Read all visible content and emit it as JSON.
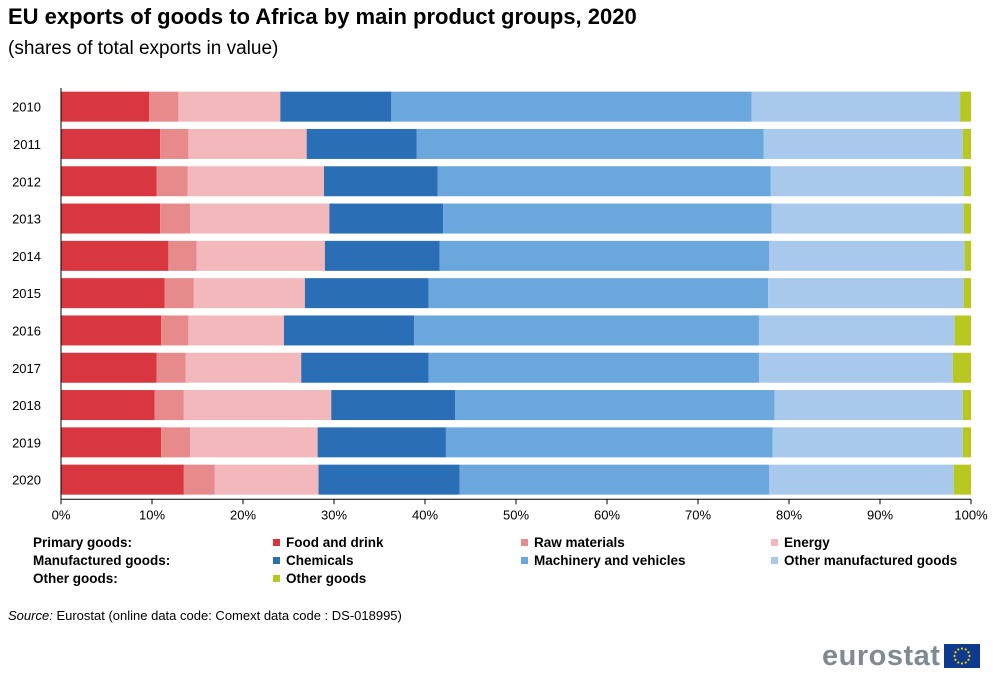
{
  "title": "EU exports of goods to Africa by main product groups, 2020",
  "subtitle": "(shares of total exports in value)",
  "chart_data": {
    "type": "bar",
    "orientation": "horizontal",
    "stacked": true,
    "categories": [
      "2010",
      "2011",
      "2012",
      "2013",
      "2014",
      "2015",
      "2016",
      "2017",
      "2018",
      "2019",
      "2020"
    ],
    "xlim": [
      0,
      100
    ],
    "xticks": [
      0,
      10,
      20,
      30,
      40,
      50,
      60,
      70,
      80,
      90,
      100
    ],
    "xtick_labels": [
      "0%",
      "10%",
      "20%",
      "30%",
      "40%",
      "50%",
      "60%",
      "70%",
      "80%",
      "90%",
      "100%"
    ],
    "grid": false,
    "series": [
      {
        "name": "Food and drink",
        "color": "#d9373f",
        "values": [
          9.7,
          10.9,
          10.5,
          10.9,
          11.8,
          11.4,
          11.0,
          10.5,
          10.3,
          11.0,
          13.5
        ]
      },
      {
        "name": "Raw materials",
        "color": "#e68a8c",
        "values": [
          3.2,
          3.1,
          3.4,
          3.3,
          3.1,
          3.2,
          3.0,
          3.2,
          3.2,
          3.2,
          3.4
        ]
      },
      {
        "name": "Energy",
        "color": "#f2b8bb",
        "values": [
          11.2,
          13.0,
          15.0,
          15.3,
          14.1,
          12.2,
          10.5,
          12.7,
          16.2,
          14.0,
          11.4
        ]
      },
      {
        "name": "Chemicals",
        "color": "#2a6fb5",
        "values": [
          12.2,
          12.1,
          12.5,
          12.5,
          12.6,
          13.6,
          14.3,
          14.0,
          13.6,
          14.1,
          15.5
        ]
      },
      {
        "name": "Machinery and vehicles",
        "color": "#6aa7dd",
        "values": [
          39.6,
          38.1,
          36.6,
          36.1,
          36.2,
          37.3,
          37.9,
          36.3,
          35.1,
          35.9,
          34.0
        ]
      },
      {
        "name": "Other manufactured goods",
        "color": "#a8c9ec",
        "values": [
          22.9,
          21.9,
          21.2,
          21.1,
          21.5,
          21.5,
          21.5,
          21.3,
          20.7,
          20.9,
          20.3
        ]
      },
      {
        "name": "Other goods",
        "color": "#b9c820",
        "values": [
          1.2,
          0.9,
          0.8,
          0.8,
          0.7,
          0.8,
          1.8,
          2.0,
          0.9,
          0.9,
          1.9
        ]
      }
    ],
    "legend_position": "bottom",
    "legend_groups": [
      {
        "label": "Primary goods:",
        "items": [
          "Food and drink",
          "Raw materials",
          "Energy"
        ]
      },
      {
        "label": "Manufactured goods:",
        "items": [
          "Chemicals",
          "Machinery and vehicles",
          "Other manufactured goods"
        ]
      },
      {
        "label": "Other goods:",
        "items": [
          "Other goods"
        ]
      }
    ]
  },
  "source": {
    "label": "Source:",
    "text": "Eurostat (online data code: Comext data code : DS-018995)"
  },
  "logo": {
    "text": "eurostat",
    "flag_color": "#0d3a8c",
    "star_color": "#f4d000"
  }
}
